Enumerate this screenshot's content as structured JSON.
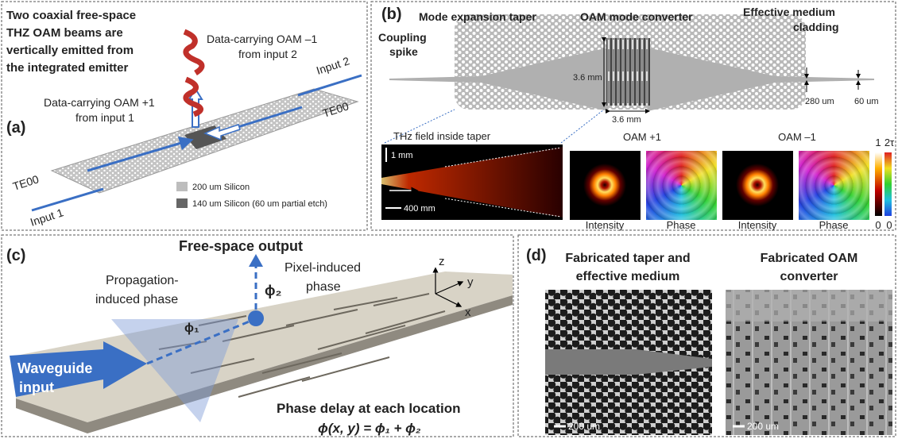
{
  "panel_a": {
    "label": "(a)",
    "headline": [
      "Two coaxial free-space",
      "THZ OAM beams are",
      "vertically emitted from",
      "the integrated emitter"
    ],
    "oam_minus_note": [
      "Data-carrying OAM –1",
      "from input 2"
    ],
    "oam_plus_note": [
      "Data-carrying OAM +1",
      "from input 1"
    ],
    "inputs": [
      {
        "label": "Input 1",
        "mode": "TE00"
      },
      {
        "label": "Input 2",
        "mode": "TE00"
      }
    ],
    "legend": [
      "200 um Silicon",
      "140 um Silicon (60 um partial etch)"
    ]
  },
  "panel_b": {
    "label": "(b)",
    "coupling_spike": [
      "Coupling",
      "spike"
    ],
    "taper": "Mode expansion taper",
    "converter": "OAM mode converter",
    "cladding": [
      "Effective medium",
      "cladding"
    ],
    "dimensions": [
      "3.6 mm",
      "3.6 mm",
      "280 um",
      "60 um"
    ],
    "field_title": "THz field inside taper",
    "field_scales": [
      "1 mm",
      "400 mm"
    ],
    "modes": [
      "OAM +1",
      "OAM –1"
    ],
    "image_labels": [
      "Intensity",
      "Phase",
      "Intensity",
      "Phase"
    ],
    "colorbars": [
      {
        "top": "1",
        "bottom": "0"
      },
      {
        "top": "2τ",
        "bottom": "0"
      }
    ]
  },
  "panel_c": {
    "label": "(c)",
    "output": "Free-space output",
    "pixel_phase": [
      "Pixel-induced",
      "phase"
    ],
    "propagation_phase": [
      "Propagation-",
      "induced phase"
    ],
    "phi2": "ϕ₂",
    "phi1": "ϕ₁",
    "axes": [
      "z",
      "y",
      "x"
    ],
    "input": [
      "Waveguide",
      "input"
    ],
    "delay_title": "Phase delay at each location",
    "equation": "ϕ(x, y) = ϕ₁ + ϕ₂"
  },
  "panel_d": {
    "label": "(d)",
    "left_title": [
      "Fabricated taper and",
      "effective medium"
    ],
    "right_title": [
      "Fabricated OAM",
      "converter"
    ],
    "scale_bars": [
      "200 um",
      "200 um"
    ]
  }
}
